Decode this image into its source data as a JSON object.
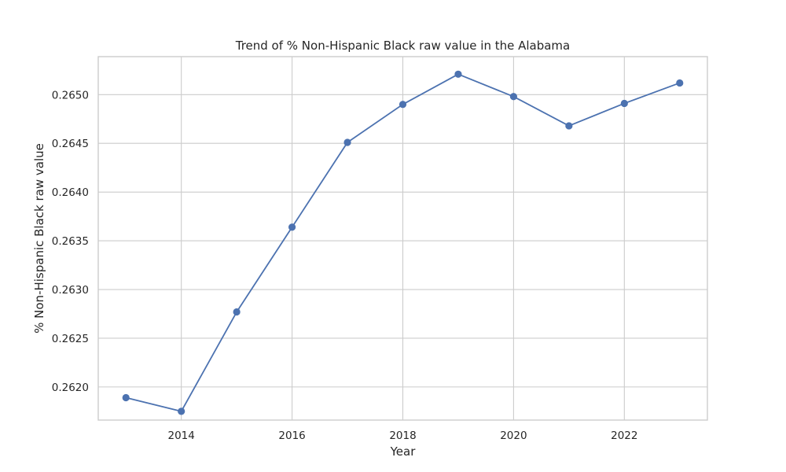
{
  "chart_data": {
    "type": "line",
    "title": "Trend of % Non-Hispanic Black raw value in the Alabama",
    "xlabel": "Year",
    "ylabel": "% Non-Hispanic Black raw value",
    "x": [
      2013,
      2014,
      2015,
      2016,
      2017,
      2018,
      2019,
      2020,
      2021,
      2022,
      2023
    ],
    "series": [
      {
        "values": [
          0.26189,
          0.26175,
          0.26277,
          0.26364,
          0.26451,
          0.2649,
          0.26521,
          0.26498,
          0.26468,
          0.26491,
          0.26512
        ],
        "color": "#4c72b0",
        "marker": "circle"
      }
    ],
    "xlim": [
      2012.5,
      2023.5
    ],
    "ylim": [
      0.26166,
      0.26539
    ],
    "x_ticks": [
      2014,
      2016,
      2018,
      2020,
      2022
    ],
    "x_tick_labels": [
      "2014",
      "2016",
      "2018",
      "2020",
      "2022"
    ],
    "y_ticks": [
      0.262,
      0.2625,
      0.263,
      0.2635,
      0.264,
      0.2645,
      0.265
    ],
    "y_tick_labels": [
      "0.2620",
      "0.2625",
      "0.2630",
      "0.2635",
      "0.2640",
      "0.2645",
      "0.2650"
    ],
    "grid": true,
    "legend": "none"
  }
}
